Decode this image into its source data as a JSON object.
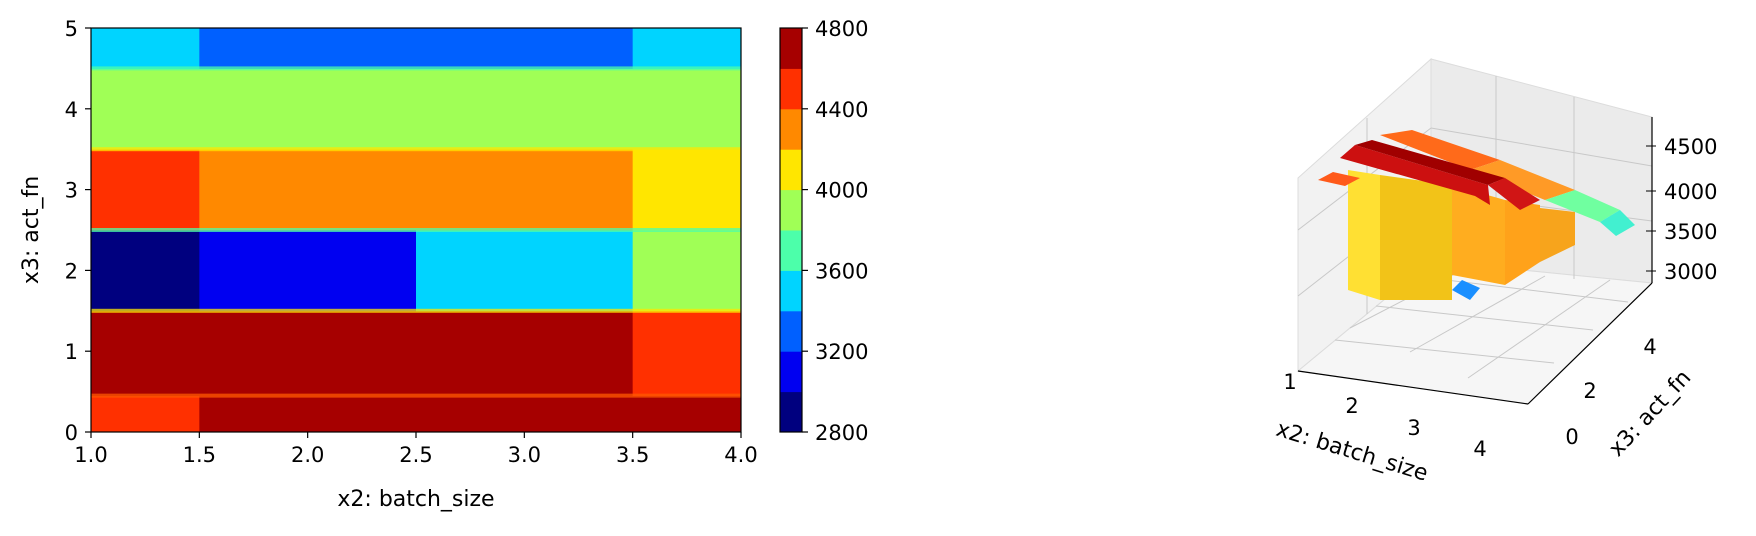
{
  "chart_data": [
    {
      "type": "heatmap",
      "xlabel": "x2: batch_size",
      "ylabel": "x3: act_fn",
      "xlim": [
        1.0,
        4.0
      ],
      "ylim": [
        0,
        5
      ],
      "xticks": [
        "1.0",
        "1.5",
        "2.0",
        "2.5",
        "3.0",
        "3.5",
        "4.0"
      ],
      "yticks": [
        "0",
        "1",
        "2",
        "3",
        "4",
        "5"
      ],
      "cells": [
        {
          "x": [
            1.0,
            1.5
          ],
          "y": [
            0,
            0.45
          ],
          "value": 4500
        },
        {
          "x": [
            1.5,
            4.0
          ],
          "y": [
            0,
            0.45
          ],
          "value": 4700
        },
        {
          "x": [
            1.0,
            3.5
          ],
          "y": [
            0.45,
            1.5
          ],
          "value": 4700
        },
        {
          "x": [
            3.5,
            4.0
          ],
          "y": [
            0.45,
            1.5
          ],
          "value": 4500
        },
        {
          "x": [
            1.0,
            1.5
          ],
          "y": [
            1.5,
            2.5
          ],
          "value": 2900
        },
        {
          "x": [
            1.5,
            2.5
          ],
          "y": [
            1.5,
            2.5
          ],
          "value": 3100
        },
        {
          "x": [
            2.5,
            3.5
          ],
          "y": [
            1.5,
            2.5
          ],
          "value": 3500
        },
        {
          "x": [
            3.5,
            4.0
          ],
          "y": [
            1.5,
            2.5
          ],
          "value": 3900
        },
        {
          "x": [
            1.0,
            1.5
          ],
          "y": [
            2.5,
            3.5
          ],
          "value": 4500
        },
        {
          "x": [
            1.5,
            3.5
          ],
          "y": [
            2.5,
            3.5
          ],
          "value": 4300
        },
        {
          "x": [
            3.5,
            4.0
          ],
          "y": [
            2.5,
            3.5
          ],
          "value": 4100
        },
        {
          "x": [
            1.0,
            4.0
          ],
          "y": [
            3.5,
            4.5
          ],
          "value": 3900
        },
        {
          "x": [
            1.0,
            1.5
          ],
          "y": [
            4.5,
            5.0
          ],
          "value": 3500
        },
        {
          "x": [
            1.5,
            3.5
          ],
          "y": [
            4.5,
            5.0
          ],
          "value": 3300
        },
        {
          "x": [
            3.5,
            4.0
          ],
          "y": [
            4.5,
            5.0
          ],
          "value": 3500
        }
      ],
      "colorbar": {
        "min": 2800,
        "max": 4800,
        "levels": 10,
        "ticks": [
          "2800",
          "3200",
          "3600",
          "4000",
          "4400",
          "4800"
        ],
        "colormap": [
          "#00007f",
          "#0000f1",
          "#0060ff",
          "#00d4ff",
          "#4cffaa",
          "#a0ff56",
          "#ffe600",
          "#ff8900",
          "#ff3000",
          "#a60000"
        ]
      }
    },
    {
      "type": "surface3d",
      "xlabel": "x2: batch_size",
      "ylabel": "x3: act_fn",
      "xticks": [
        "1",
        "2",
        "3",
        "4"
      ],
      "yticks": [
        "0",
        "2",
        "4"
      ],
      "zticks": [
        "3000",
        "3500",
        "4000",
        "4500"
      ]
    }
  ]
}
